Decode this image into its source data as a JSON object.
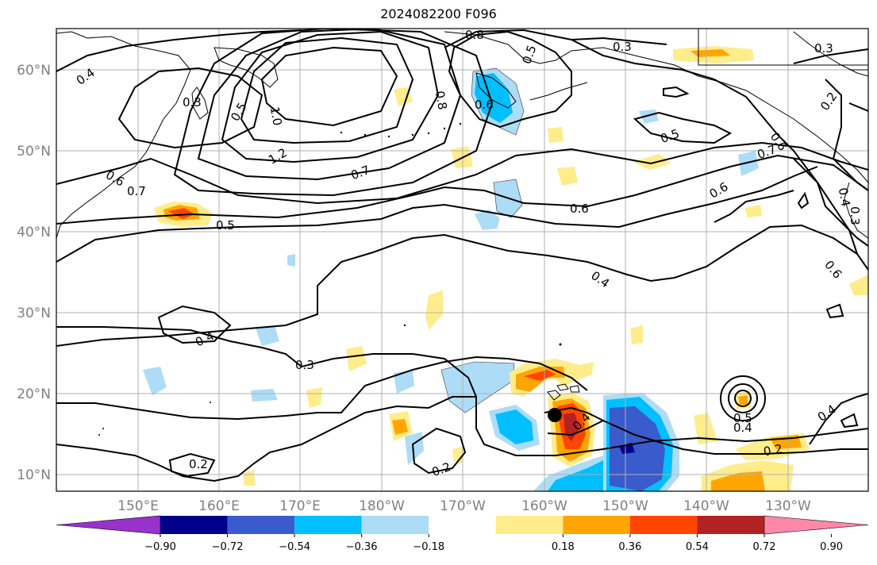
{
  "title": "2024082200 F096",
  "lat_labels": [
    "60°N",
    "50°N",
    "40°N",
    "30°N",
    "20°N",
    "10°N"
  ],
  "lon_labels": [
    "150°E",
    "160°E",
    "170°E",
    "180°W",
    "170°W",
    "160°W",
    "150°W",
    "140°W",
    "130°W"
  ],
  "contour_labels": [
    "0.8",
    "0.3",
    "0.3",
    "0.4",
    "0.3",
    "0.5",
    "0.5",
    "0.2",
    "1.0",
    "0.8",
    "0.6",
    "0.5",
    "0.6",
    "1.2",
    "0.7",
    "0.7",
    "0.6",
    "0.6",
    "0.6",
    "0.5",
    "0.6",
    "0.4",
    "0.4",
    "0.3",
    "0.7",
    "0.4",
    "0.3",
    "0.5",
    "0.4",
    "0.4",
    "0.2",
    "0.2",
    "0.2",
    "0.4"
  ],
  "colorbar": {
    "tick_labels": [
      "−0.90",
      "−0.72",
      "−0.54",
      "−0.36",
      "−0.18",
      "0.18",
      "0.36",
      "0.54",
      "0.72",
      "0.90"
    ],
    "colors": [
      "#9932CC",
      "#00008B",
      "#3A5BCC",
      "#00BFFF",
      "#ADDCF7",
      "#FFFFFF",
      "#FFEC8B",
      "#FFA500",
      "#FF4500",
      "#B22222",
      "#FF88AA"
    ]
  },
  "marker": "storm-center-dot"
}
